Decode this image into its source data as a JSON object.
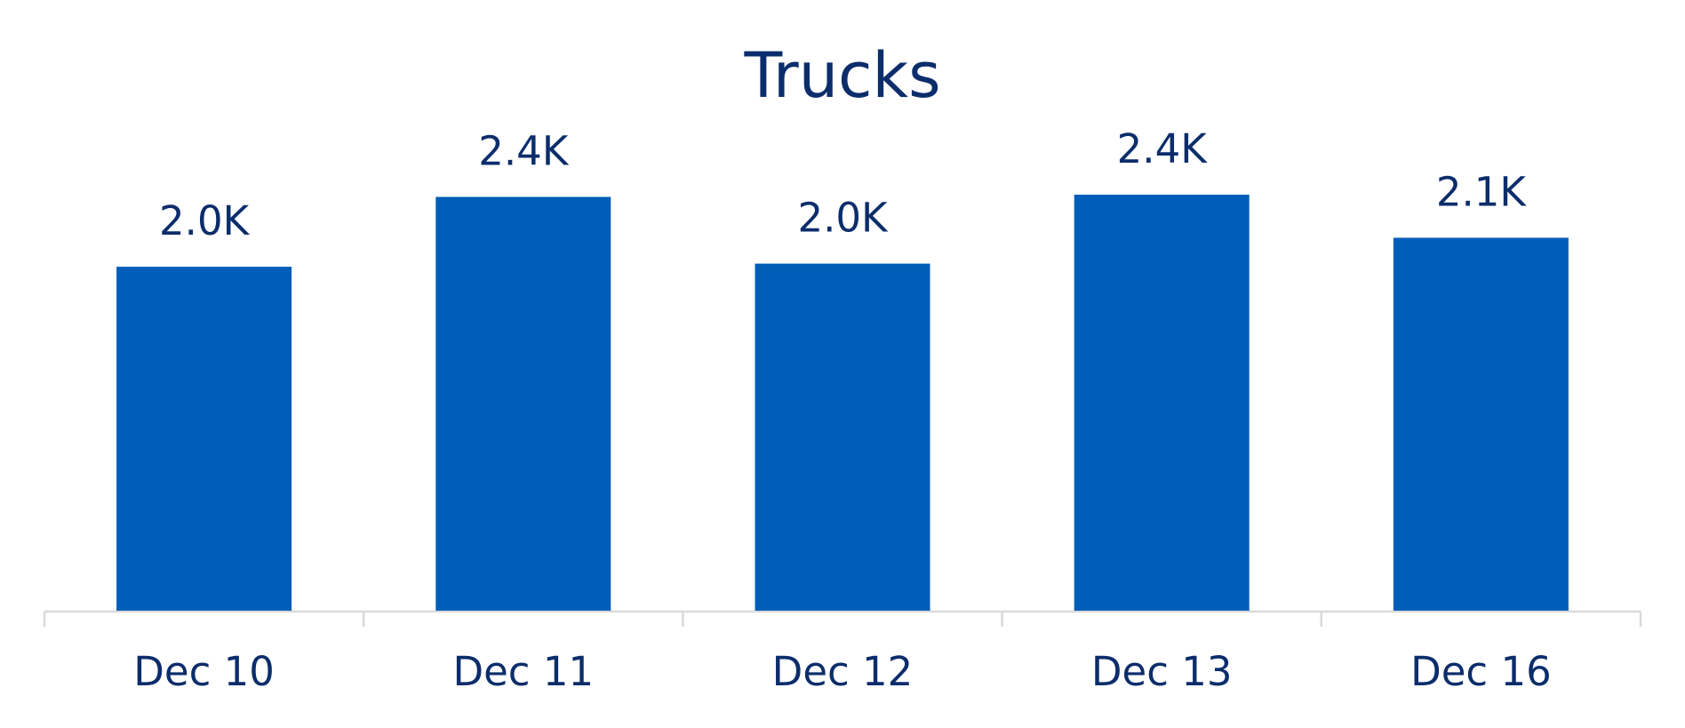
{
  "chart_data": {
    "type": "bar",
    "title": "Trucks",
    "categories": [
      "Dec 10",
      "Dec 11",
      "Dec 12",
      "Dec 13",
      "Dec 16"
    ],
    "values": [
      1980,
      2382,
      1998,
      2395,
      2147
    ],
    "value_labels": [
      "2.0K",
      "2.4K",
      "2.0K",
      "2.4K",
      "2.1K"
    ],
    "color": "#005eb8"
  }
}
